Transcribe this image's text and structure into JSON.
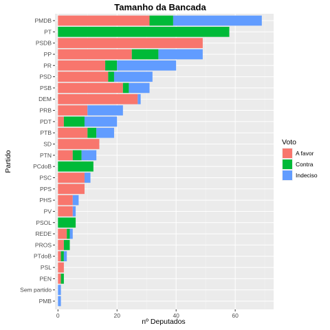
{
  "chart_data": {
    "type": "bar",
    "orientation": "horizontal",
    "stacked": true,
    "title": "Tamanho da Bancada",
    "xlabel": "nº Deputados",
    "ylabel": "Partido",
    "xlim": [
      -1,
      73
    ],
    "xticks": [
      0,
      20,
      40,
      60
    ],
    "grid": true,
    "legend": {
      "title": "Voto",
      "position": "right"
    },
    "categories": [
      "PMDB",
      "PT",
      "PSDB",
      "PP",
      "PR",
      "PSD",
      "PSB",
      "DEM",
      "PRB",
      "PDT",
      "PTB",
      "SD",
      "PTN",
      "PCdoB",
      "PSC",
      "PPS",
      "PHS",
      "PV",
      "PSOL",
      "REDE",
      "PROS",
      "PTdoB",
      "PSL",
      "PEN",
      "Sem partido",
      "PMB"
    ],
    "series": [
      {
        "name": "A favor",
        "color": "#F8766D",
        "values": [
          31,
          0,
          49,
          25,
          16,
          17,
          22,
          27,
          10,
          2,
          10,
          14,
          5,
          0,
          9,
          9,
          5,
          5,
          0,
          3,
          2,
          1,
          2,
          1,
          0,
          0
        ]
      },
      {
        "name": "Contra",
        "color": "#00BA38",
        "values": [
          8,
          58,
          0,
          9,
          4,
          2,
          2,
          0,
          0,
          7,
          3,
          0,
          3,
          12,
          0,
          0,
          0,
          0,
          6,
          1,
          2,
          1,
          0,
          1,
          0,
          0
        ]
      },
      {
        "name": "Indeciso",
        "color": "#619CFF",
        "values": [
          30,
          0,
          0,
          15,
          20,
          13,
          7,
          1,
          12,
          11,
          6,
          0,
          5,
          0,
          2,
          0,
          2,
          1,
          0,
          1,
          0,
          1,
          0,
          0,
          1,
          1
        ]
      }
    ]
  }
}
